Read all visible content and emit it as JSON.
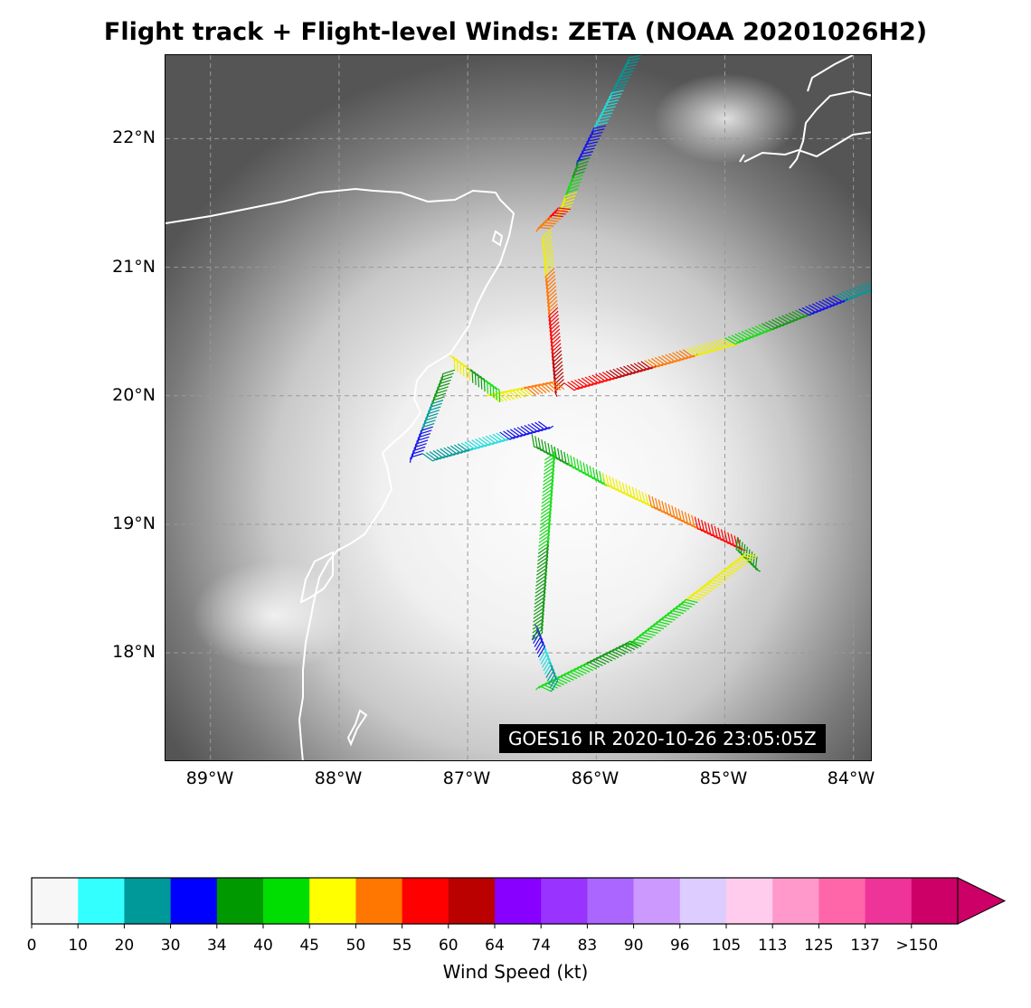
{
  "title": "Flight track + Flight-level Winds: ZETA (NOAA 20201026H2)",
  "image_stamp": "GOES16 IR 2020-10-26 23:05:05Z",
  "map": {
    "lon_range": [
      -89.35,
      -83.85
    ],
    "lat_range": [
      17.15,
      22.65
    ],
    "lat_ticks": [
      "22°N",
      "21°N",
      "20°N",
      "19°N",
      "18°N"
    ],
    "lon_ticks": [
      "89°W",
      "88°W",
      "87°W",
      "86°W",
      "85°W",
      "84°W"
    ],
    "grid": "dashed",
    "background": "grayscale infrared satellite imagery",
    "coastline_color": "#ffffff"
  },
  "colorbar": {
    "label": "Wind Speed (kt)",
    "tick_labels": [
      "0",
      "10",
      "20",
      "30",
      "34",
      "40",
      "45",
      "50",
      "55",
      "60",
      "64",
      "74",
      "83",
      "90",
      "96",
      "105",
      "113",
      "125",
      "137",
      ">150"
    ],
    "colors": [
      "#f7f7f7",
      "#33ffff",
      "#009999",
      "#0000ff",
      "#009900",
      "#00dd00",
      "#ffff00",
      "#ff7700",
      "#ff0000",
      "#bb0000",
      "#8800ff",
      "#9933ff",
      "#aa66ff",
      "#cc99ff",
      "#ddccff",
      "#ffccee",
      "#ff99cc",
      "#ff66aa",
      "#ee3399",
      "#cc0066"
    ]
  },
  "flight_track": {
    "variable": "Flight-level wind speed (kt)",
    "segments": [
      {
        "from": [
          -85.65,
          22.65
        ],
        "to": [
          -86.05,
          21.85
        ],
        "colors": [
          "teal",
          "cyan",
          "blue"
        ]
      },
      {
        "from": [
          -86.05,
          21.85
        ],
        "to": [
          -86.2,
          21.45
        ],
        "colors": [
          "green",
          "lightgreen",
          "yellow"
        ]
      },
      {
        "from": [
          -86.2,
          21.45
        ],
        "to": [
          -86.35,
          21.3
        ],
        "colors": [
          "red",
          "orange"
        ]
      },
      {
        "from": [
          -86.35,
          21.3
        ],
        "to": [
          -86.25,
          20.1
        ],
        "colors": [
          "yellow",
          "orange",
          "red",
          "darkred"
        ]
      },
      {
        "from": [
          -86.25,
          20.1
        ],
        "to": [
          -85.0,
          20.45
        ],
        "colors": [
          "red",
          "darkred",
          "orange",
          "yellow"
        ]
      },
      {
        "from": [
          -85.0,
          20.45
        ],
        "to": [
          -83.85,
          20.9
        ],
        "colors": [
          "lightgreen",
          "green",
          "blue",
          "teal"
        ]
      },
      {
        "from": [
          -86.25,
          20.05
        ],
        "to": [
          -86.75,
          19.95
        ],
        "colors": [
          "orange",
          "yellow"
        ]
      },
      {
        "from": [
          -86.75,
          19.95
        ],
        "to": [
          -87.1,
          20.2
        ],
        "colors": [
          "lightgreen",
          "green",
          "yellow"
        ]
      },
      {
        "from": [
          -87.1,
          20.2
        ],
        "to": [
          -87.35,
          19.55
        ],
        "colors": [
          "green",
          "teal",
          "blue"
        ]
      },
      {
        "from": [
          -87.35,
          19.55
        ],
        "to": [
          -86.45,
          19.8
        ],
        "colors": [
          "teal",
          "cyan",
          "blue"
        ]
      },
      {
        "from": [
          -86.5,
          19.7
        ],
        "to": [
          -85.95,
          19.4
        ],
        "colors": [
          "green",
          "lightgreen"
        ]
      },
      {
        "from": [
          -85.95,
          19.4
        ],
        "to": [
          -84.9,
          18.9
        ],
        "colors": [
          "yellow",
          "orange",
          "red"
        ]
      },
      {
        "from": [
          -84.9,
          18.9
        ],
        "to": [
          -84.75,
          18.75
        ],
        "colors": [
          "green"
        ]
      },
      {
        "from": [
          -84.75,
          18.75
        ],
        "to": [
          -85.65,
          18.05
        ],
        "colors": [
          "yellow",
          "lightgreen"
        ]
      },
      {
        "from": [
          -85.65,
          18.05
        ],
        "to": [
          -86.35,
          17.7
        ],
        "colors": [
          "green",
          "lightgreen"
        ]
      },
      {
        "from": [
          -86.35,
          17.7
        ],
        "to": [
          -86.5,
          18.1
        ],
        "colors": [
          "teal",
          "cyan",
          "blue"
        ]
      },
      {
        "from": [
          -86.5,
          18.1
        ],
        "to": [
          -86.4,
          19.5
        ],
        "colors": [
          "green",
          "lightgreen"
        ]
      }
    ]
  }
}
